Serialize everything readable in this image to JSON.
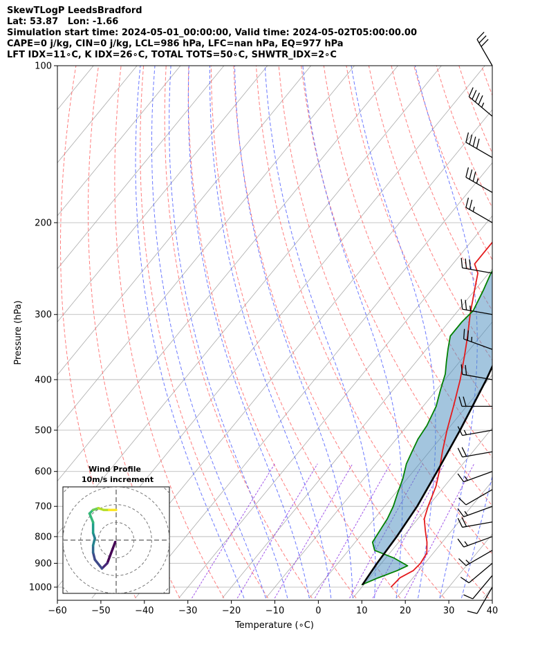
{
  "header": {
    "line1": "SkewTLogP LeedsBradford",
    "line2": "Lat: 53.87   Lon: -1.66",
    "line3": "Simulation start time: 2024-05-01_00:00:00, Valid time: 2024-05-02T05:00:00.00",
    "line4": "CAPE=0 j/kg, CIN=0 j/kg, LCL=986 hPa, LFC=nan hPa, EQ=977 hPa",
    "line5": "LFT IDX=11∘C, K IDX=26∘C, TOTAL TOTS=50∘C, SHWTR_IDX=2∘C"
  },
  "chart_data": {
    "type": "line",
    "subtype": "skew-t log-p",
    "xlabel": "Temperature (∘C)",
    "ylabel": "Pressure (hPa)",
    "xlim": [
      -60,
      40
    ],
    "ylim": [
      1040,
      100
    ],
    "yscale": "log",
    "x_ticks": [
      -60,
      -50,
      -40,
      -30,
      -20,
      -10,
      0,
      10,
      20,
      30,
      40
    ],
    "x_tick_labels": [
      "−60",
      "−50",
      "−40",
      "−30",
      "−20",
      "−10",
      "0",
      "10",
      "20",
      "30",
      "40"
    ],
    "y_ticks": [
      100,
      200,
      300,
      400,
      500,
      600,
      700,
      800,
      900,
      1000
    ],
    "y_tick_labels": [
      "100",
      "200",
      "300",
      "400",
      "500",
      "600",
      "700",
      "800",
      "900",
      "1000"
    ],
    "grid": true,
    "colors": {
      "temperature": "#e41a1c",
      "dewpoint": "#008000",
      "parcel": "#000000",
      "cape_fill": "#4f8fc0",
      "dry_adiabat": "#ff6666",
      "moist_adiabat": "#5060ff",
      "mixing_ratio": "#8a2be2",
      "isotherm": "#aaaaaa"
    },
    "series": [
      {
        "key": "temperature",
        "points": [
          [
            16.7,
            1000
          ],
          [
            17,
            960
          ],
          [
            18.7,
            930
          ],
          [
            19,
            900
          ],
          [
            18.5,
            860
          ],
          [
            16.5,
            820
          ],
          [
            14,
            780
          ],
          [
            11.5,
            740
          ],
          [
            10,
            700
          ],
          [
            8,
            640
          ],
          [
            6,
            600
          ],
          [
            3,
            550
          ],
          [
            0,
            500
          ],
          [
            -3,
            450
          ],
          [
            -6.5,
            400
          ],
          [
            -10,
            360
          ],
          [
            -13,
            330
          ],
          [
            -16.5,
            300
          ],
          [
            -20,
            270
          ],
          [
            -22.5,
            250
          ],
          [
            -25,
            240
          ],
          [
            -25,
            230
          ],
          [
            -25,
            220
          ],
          [
            -25,
            205
          ],
          [
            -26,
            195
          ],
          [
            -28,
            185
          ],
          [
            -30,
            172
          ],
          [
            -33,
            160
          ],
          [
            -36,
            150
          ],
          [
            -40,
            140
          ],
          [
            -45,
            130
          ],
          [
            -48,
            123
          ],
          [
            -50,
            117
          ],
          [
            -53,
            111
          ],
          [
            -55,
            106
          ],
          [
            -57,
            100
          ]
        ]
      },
      {
        "key": "dewpoint",
        "points": [
          [
            9.5,
            990
          ],
          [
            12,
            960
          ],
          [
            15,
            930
          ],
          [
            16.5,
            910
          ],
          [
            12,
            880
          ],
          [
            6,
            850
          ],
          [
            4,
            820
          ],
          [
            3.5,
            780
          ],
          [
            3,
            740
          ],
          [
            2,
            700
          ],
          [
            0.5,
            660
          ],
          [
            -1,
            620
          ],
          [
            -3,
            580
          ],
          [
            -4,
            550
          ],
          [
            -5,
            520
          ],
          [
            -5.5,
            490
          ],
          [
            -7,
            450
          ],
          [
            -9,
            420
          ],
          [
            -11,
            390
          ],
          [
            -13,
            370
          ],
          [
            -15,
            350
          ],
          [
            -17,
            330
          ],
          [
            -17,
            310
          ],
          [
            -16.5,
            295
          ],
          [
            -18,
            270
          ],
          [
            -19.5,
            250
          ],
          [
            -20,
            235
          ],
          [
            -18.5,
            220
          ],
          [
            -17.5,
            200
          ],
          [
            -18.5,
            190
          ],
          [
            -22,
            180
          ],
          [
            -28,
            172
          ],
          [
            -29,
            165
          ],
          [
            -30,
            158
          ],
          [
            -33,
            145
          ],
          [
            -36,
            130
          ],
          [
            -38,
            122
          ],
          [
            -42,
            112
          ],
          [
            -45,
            104
          ],
          [
            -47,
            100
          ]
        ]
      },
      {
        "key": "parcel",
        "points": [
          [
            9.7,
            990
          ],
          [
            9,
            900
          ],
          [
            8.5,
            800
          ],
          [
            7.5,
            700
          ],
          [
            5.5,
            600
          ],
          [
            3,
            500
          ],
          [
            -0.5,
            400
          ],
          [
            -3,
            350
          ],
          [
            -6.5,
            300
          ],
          [
            -10,
            250
          ],
          [
            -14,
            200
          ],
          [
            -20,
            150
          ],
          [
            -25,
            120
          ],
          [
            -29,
            100
          ]
        ]
      }
    ],
    "background_lines": {
      "isotherms": [
        -150,
        -140,
        -130,
        -120,
        -110,
        -100,
        -90,
        -80,
        -70,
        -60,
        -50,
        -40,
        -30,
        -20,
        -10,
        0,
        10,
        20,
        30,
        40
      ],
      "dry_adiabats_theta_K": [
        230,
        240,
        250,
        260,
        270,
        280,
        290,
        300,
        310,
        320,
        330,
        340,
        350,
        360,
        370,
        380,
        390,
        400,
        410,
        420,
        430,
        440,
        450,
        460,
        470
      ],
      "moist_adiabats_theta_e_C": [
        -15,
        -10,
        -5,
        0,
        5,
        10,
        15,
        20,
        25,
        30,
        35
      ],
      "mixing_ratio_lines": [
        0.4,
        1,
        2,
        4,
        7,
        10,
        16
      ]
    },
    "wind_barbs": [
      {
        "p": 100,
        "speed_kt": 30,
        "dir": 330
      },
      {
        "p": 125,
        "speed_kt": 45,
        "dir": 310
      },
      {
        "p": 150,
        "speed_kt": 40,
        "dir": 300
      },
      {
        "p": 175,
        "speed_kt": 35,
        "dir": 300
      },
      {
        "p": 200,
        "speed_kt": 25,
        "dir": 300
      },
      {
        "p": 250,
        "speed_kt": 30,
        "dir": 280
      },
      {
        "p": 300,
        "speed_kt": 25,
        "dir": 280
      },
      {
        "p": 350,
        "speed_kt": 25,
        "dir": 290
      },
      {
        "p": 400,
        "speed_kt": 20,
        "dir": 280
      },
      {
        "p": 450,
        "speed_kt": 20,
        "dir": 270
      },
      {
        "p": 500,
        "speed_kt": 15,
        "dir": 260
      },
      {
        "p": 550,
        "speed_kt": 20,
        "dir": 260
      },
      {
        "p": 600,
        "speed_kt": 15,
        "dir": 250
      },
      {
        "p": 650,
        "speed_kt": 10,
        "dir": 240
      },
      {
        "p": 700,
        "speed_kt": 15,
        "dir": 250
      },
      {
        "p": 750,
        "speed_kt": 20,
        "dir": 260
      },
      {
        "p": 800,
        "speed_kt": 15,
        "dir": 250
      },
      {
        "p": 850,
        "speed_kt": 15,
        "dir": 240
      },
      {
        "p": 900,
        "speed_kt": 10,
        "dir": 230
      },
      {
        "p": 950,
        "speed_kt": 10,
        "dir": 220
      },
      {
        "p": 1000,
        "speed_kt": 10,
        "dir": 210
      }
    ],
    "hodograph": {
      "title": "Wind Profile",
      "subtitle": "10m/s increment",
      "ring_step_ms": 10,
      "xlim": [
        -30,
        30
      ],
      "ylim": [
        -30,
        30
      ],
      "uv_points": [
        [
          -0.5,
          -1
        ],
        [
          -2,
          -5
        ],
        [
          -5,
          -13
        ],
        [
          -8,
          -16
        ],
        [
          -12,
          -11
        ],
        [
          -13,
          -7
        ],
        [
          -13,
          -3
        ],
        [
          -12,
          1
        ],
        [
          -13,
          4
        ],
        [
          -13,
          10
        ],
        [
          -15,
          15
        ],
        [
          -13,
          17
        ],
        [
          -10,
          18
        ],
        [
          -7,
          17
        ],
        [
          -4,
          17
        ],
        [
          0,
          17
        ]
      ]
    }
  }
}
